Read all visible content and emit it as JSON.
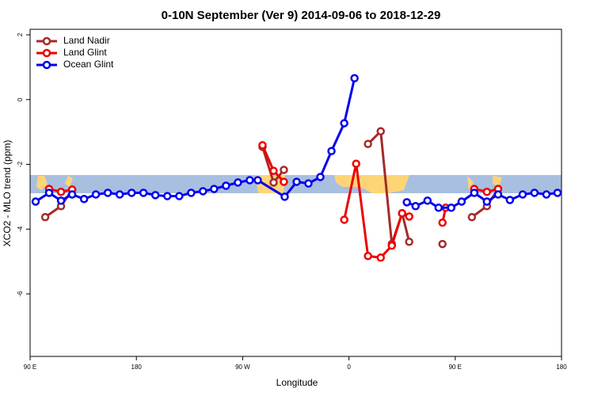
{
  "chart_data": {
    "type": "line",
    "title": "0-10N September (Ver 9)   2014-09-06 to 2018-12-29",
    "x_label": "Longitude",
    "y_label": "XCO2 - MLO trend (ppm)",
    "xlim": [
      90,
      540
    ],
    "ylim": [
      -7.93,
      2.17
    ],
    "xticks": [
      {
        "value": 90,
        "label": "90 E"
      },
      {
        "value": 180,
        "label": "180"
      },
      {
        "value": 270,
        "label": "90 W"
      },
      {
        "value": 360,
        "label": "0"
      },
      {
        "value": 450,
        "label": "90 E"
      },
      {
        "value": 540,
        "label": "180"
      }
    ],
    "yticks": [
      2,
      0,
      -2,
      -4,
      -6
    ],
    "legend": "top-left",
    "series": [
      {
        "name": "Land Nadir",
        "color": "#a52a2a",
        "x": [
          102.8,
          116.2,
          125.6,
          null,
          286.8,
          296.2,
          304.9,
          null,
          376.1,
          386.9,
          396.3,
          405,
          411,
          null,
          439.2,
          null,
          464.1,
          476.8,
          486.3
        ],
        "values": [
          -3.63,
          -3.29,
          -2.78,
          null,
          -1.46,
          -2.56,
          -2.17,
          null,
          -1.37,
          -0.98,
          -4.46,
          -3.51,
          -4.39,
          null,
          -4.46,
          null,
          -3.63,
          -3.29,
          -2.76
        ]
      },
      {
        "name": "Land Glint",
        "color": "#ee0000",
        "x": [
          106.1,
          116.2,
          125.6,
          null,
          286.8,
          296.2,
          304.9,
          null,
          356,
          366.1,
          376.1,
          386.9,
          396.3,
          405,
          411,
          null,
          439.2,
          441.9,
          null,
          466.1,
          476.8,
          486.3
        ],
        "values": [
          -2.76,
          -2.85,
          -2.78,
          null,
          -1.41,
          -2.2,
          -2.54,
          null,
          -3.71,
          -1.98,
          -4.83,
          -4.88,
          -4.51,
          -3.51,
          -3.61,
          null,
          -3.8,
          -3.34,
          null,
          -2.76,
          -2.85,
          -2.76
        ]
      },
      {
        "name": "Ocean Glint",
        "color": "#0000ee",
        "x": [
          94.7,
          106.1,
          116.2,
          125.6,
          135.7,
          145.7,
          155.8,
          165.9,
          176,
          186,
          196.1,
          206.2,
          216.3,
          226.4,
          236.4,
          245.8,
          255.9,
          266,
          276,
          282.8,
          305.6,
          315.7,
          325.7,
          335.8,
          345.2,
          356,
          364.7,
          null,
          409,
          416.4,
          426.5,
          435.9,
          446.6,
          455.4,
          466.1,
          476.8,
          486.3,
          496.3,
          507.1,
          517.1,
          527.2,
          536.6
        ],
        "values": [
          -3.15,
          -2.88,
          -3.12,
          -2.93,
          -3.07,
          -2.93,
          -2.88,
          -2.93,
          -2.88,
          -2.88,
          -2.95,
          -2.98,
          -2.98,
          -2.88,
          -2.83,
          -2.76,
          -2.66,
          -2.56,
          -2.49,
          -2.49,
          -3.0,
          -2.54,
          -2.59,
          -2.39,
          -1.59,
          -0.73,
          0.66,
          null,
          -3.17,
          -3.29,
          -3.12,
          -3.34,
          -3.34,
          -3.15,
          -2.88,
          -3.15,
          -2.93,
          -3.1,
          -2.93,
          -2.88,
          -2.93,
          -2.88
        ]
      }
    ]
  }
}
